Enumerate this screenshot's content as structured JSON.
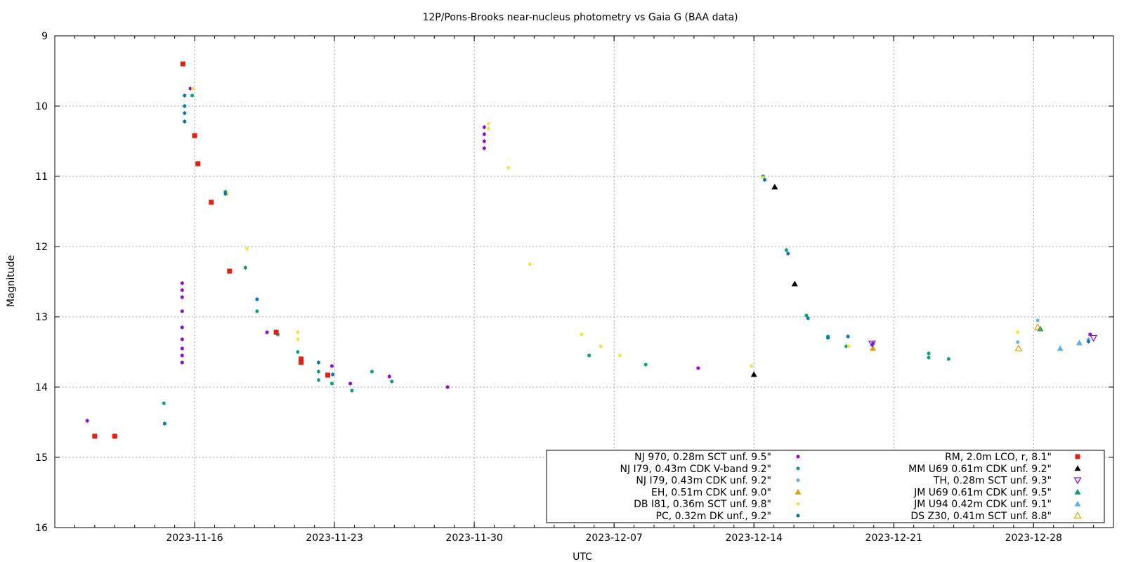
{
  "chart_data": {
    "type": "scatter",
    "title": "12P/Pons-Brooks near-nucleus photometry vs Gaia G (BAA data)",
    "xlabel": "UTC",
    "ylabel": "Magnitude",
    "xlim": [
      "2023-11-09",
      "2024-01-01"
    ],
    "ylim": [
      9,
      16
    ],
    "y_inverted": true,
    "yticks": [
      9,
      10,
      11,
      12,
      13,
      14,
      15,
      16
    ],
    "xticks": [
      "2023-11-16",
      "2023-11-23",
      "2023-11-30",
      "2023-12-07",
      "2023-12-14",
      "2023-12-21",
      "2023-12-28"
    ],
    "grid": true,
    "legend_position": "bottom-right",
    "series": [
      {
        "name": "NJ 970, 0.28m SCT unf. 9.5\"",
        "color": "#9400d3",
        "marker": "star",
        "points": [
          [
            "2023-11-10 15:00",
            14.48
          ],
          [
            "2023-11-15 09:00",
            12.52
          ],
          [
            "2023-11-15 09:00",
            12.62
          ],
          [
            "2023-11-15 09:00",
            12.72
          ],
          [
            "2023-11-15 09:00",
            12.92
          ],
          [
            "2023-11-15 09:00",
            13.15
          ],
          [
            "2023-11-15 09:00",
            13.32
          ],
          [
            "2023-11-15 09:00",
            13.45
          ],
          [
            "2023-11-15 09:00",
            13.55
          ],
          [
            "2023-11-15 09:00",
            13.65
          ],
          [
            "2023-11-15 19:00",
            9.75
          ],
          [
            "2023-11-19 15:00",
            13.22
          ],
          [
            "2023-11-22 21:00",
            13.7
          ],
          [
            "2023-11-23 19:00",
            13.95
          ],
          [
            "2023-11-25 18:00",
            13.85
          ],
          [
            "2023-11-28 16:00",
            14.0
          ],
          [
            "2023-11-30 12:00",
            10.3
          ],
          [
            "2023-11-30 12:00",
            10.4
          ],
          [
            "2023-11-30 12:00",
            10.5
          ],
          [
            "2023-11-30 12:00",
            10.6
          ],
          [
            "2023-12-11 05:00",
            13.73
          ],
          [
            "2023-12-19 23:00",
            13.38
          ],
          [
            "2023-12-30 20:00",
            13.25
          ]
        ]
      },
      {
        "name": "NJ I79, 0.43m CDK V-band 9.2\"",
        "color": "#009e73",
        "marker": "star",
        "points": [
          [
            "2023-11-14 11:00",
            14.23
          ],
          [
            "2023-11-15 21:00",
            9.85
          ],
          [
            "2023-11-17 13:00",
            11.22
          ],
          [
            "2023-11-18 13:00",
            12.3
          ],
          [
            "2023-11-19 03:00",
            12.92
          ],
          [
            "2023-11-20 04:00",
            13.25
          ],
          [
            "2023-11-21 04:00",
            13.5
          ],
          [
            "2023-11-22 05:00",
            13.9
          ],
          [
            "2023-11-22 05:00",
            13.78
          ],
          [
            "2023-11-22 21:00",
            13.95
          ],
          [
            "2023-11-23 21:00",
            14.05
          ],
          [
            "2023-11-24 21:00",
            13.78
          ],
          [
            "2023-11-25 21:00",
            13.92
          ],
          [
            "2023-12-05 18:00",
            13.55
          ],
          [
            "2023-12-08 14:00",
            13.68
          ],
          [
            "2023-12-14 11:00",
            11.0
          ],
          [
            "2023-12-15 15:00",
            12.05
          ],
          [
            "2023-12-16 15:00",
            12.98
          ],
          [
            "2023-12-17 17:00",
            13.28
          ],
          [
            "2023-12-18 15:00",
            13.42
          ],
          [
            "2023-12-22 18:00",
            13.52
          ],
          [
            "2023-12-22 18:00",
            13.58
          ],
          [
            "2023-12-23 18:00",
            13.6
          ]
        ]
      },
      {
        "name": "NJ I79, 0.43m CDK unf. 9.2\"",
        "color": "#56b4e9",
        "marker": "star",
        "points": [
          [
            "2023-12-27 05:00",
            13.36
          ],
          [
            "2023-12-28 05:00",
            13.05
          ],
          [
            "2023-12-30 18:00",
            13.32
          ]
        ]
      },
      {
        "name": "EH, 0.51m CDK unf. 9.0\"",
        "color": "#e69f00",
        "marker": "triangle",
        "points": [
          [
            "2023-12-19 23:00",
            13.45
          ]
        ]
      },
      {
        "name": "DB I81, 0.36m SCT unf. 9.8\"",
        "color": "#f0e442",
        "marker": "star",
        "points": [
          [
            "2023-11-15 22:00",
            9.75
          ],
          [
            "2023-11-17 15:00",
            11.25
          ],
          [
            "2023-11-18 15:00",
            12.03
          ],
          [
            "2023-11-21 04:00",
            13.22
          ],
          [
            "2023-11-21 04:00",
            13.32
          ],
          [
            "2023-11-30 17:00",
            10.25
          ],
          [
            "2023-11-30 17:00",
            10.32
          ],
          [
            "2023-12-01 17:00",
            10.88
          ],
          [
            "2023-12-02 19:00",
            12.25
          ],
          [
            "2023-12-05 09:00",
            13.25
          ],
          [
            "2023-12-06 08:00",
            13.42
          ],
          [
            "2023-12-07 07:00",
            13.55
          ],
          [
            "2023-12-13 21:00",
            13.7
          ],
          [
            "2023-12-14 11:00",
            11.02
          ],
          [
            "2023-12-18 18:00",
            13.42
          ],
          [
            "2023-12-27 05:00",
            13.22
          ]
        ]
      },
      {
        "name": "PC, 0.32m DK unf., 9.2\"",
        "color": "#0072b2",
        "marker": "star",
        "points": [
          [
            "2023-11-14 12:00",
            14.52
          ],
          [
            "2023-11-15 12:00",
            9.85
          ],
          [
            "2023-11-15 12:00",
            10.0
          ],
          [
            "2023-11-15 12:00",
            10.1
          ],
          [
            "2023-11-15 12:00",
            10.22
          ],
          [
            "2023-11-17 13:00",
            11.25
          ],
          [
            "2023-11-19 03:00",
            12.75
          ],
          [
            "2023-11-22 05:00",
            13.65
          ],
          [
            "2023-11-22 22:00",
            13.82
          ],
          [
            "2023-12-14 13:00",
            11.05
          ],
          [
            "2023-12-15 17:00",
            12.1
          ],
          [
            "2023-12-16 17:00",
            13.02
          ],
          [
            "2023-12-17 17:00",
            13.3
          ],
          [
            "2023-12-18 17:00",
            13.28
          ],
          [
            "2023-12-19 22:00",
            13.4
          ],
          [
            "2023-12-30 18:00",
            13.35
          ]
        ]
      },
      {
        "name": "RM, 2.0m LCO, r, 8.1\"",
        "color": "#e51e10",
        "marker": "square",
        "points": [
          [
            "2023-11-11 00:00",
            14.7
          ],
          [
            "2023-11-12 00:00",
            14.7
          ],
          [
            "2023-11-15 10:00",
            9.4
          ],
          [
            "2023-11-16 00:00",
            10.42
          ],
          [
            "2023-11-16 04:00",
            10.82
          ],
          [
            "2023-11-16 20:00",
            11.37
          ],
          [
            "2023-11-17 18:00",
            12.35
          ],
          [
            "2023-11-20 02:00",
            13.22
          ],
          [
            "2023-11-21 08:00",
            13.6
          ],
          [
            "2023-11-21 08:00",
            13.65
          ],
          [
            "2023-11-22 16:00",
            13.83
          ]
        ]
      },
      {
        "name": "MM U69 0.61m CDK unf. 9.2\"",
        "color": "#000000",
        "marker": "triangle",
        "points": [
          [
            "2023-12-14 00:00",
            13.82
          ],
          [
            "2023-12-15 01:00",
            11.15
          ],
          [
            "2023-12-16 01:00",
            12.53
          ]
        ]
      },
      {
        "name": "TH, 0.28m SCT unf. 9.3\"",
        "color": "#9400d3",
        "marker": "triangle-down-open",
        "points": [
          [
            "2023-12-19 22:00",
            13.38
          ],
          [
            "2023-12-31 00:00",
            13.3
          ]
        ]
      },
      {
        "name": "JM U69 0.61m CDK unf. 9.5\"",
        "color": "#009e73",
        "marker": "triangle",
        "points": [
          [
            "2023-12-28 08:00",
            13.17
          ]
        ]
      },
      {
        "name": "JM U94 0.42m CDK unf. 9.1\"",
        "color": "#56b4e9",
        "marker": "triangle",
        "points": [
          [
            "2023-12-29 08:00",
            13.45
          ],
          [
            "2023-12-30 07:00",
            13.37
          ]
        ]
      },
      {
        "name": "DS Z30, 0.41m SCT unf. 8.8\"",
        "color": "#e69f00",
        "marker": "triangle-open",
        "points": [
          [
            "2023-12-27 06:00",
            13.45
          ],
          [
            "2023-12-28 05:00",
            13.15
          ]
        ]
      }
    ]
  }
}
